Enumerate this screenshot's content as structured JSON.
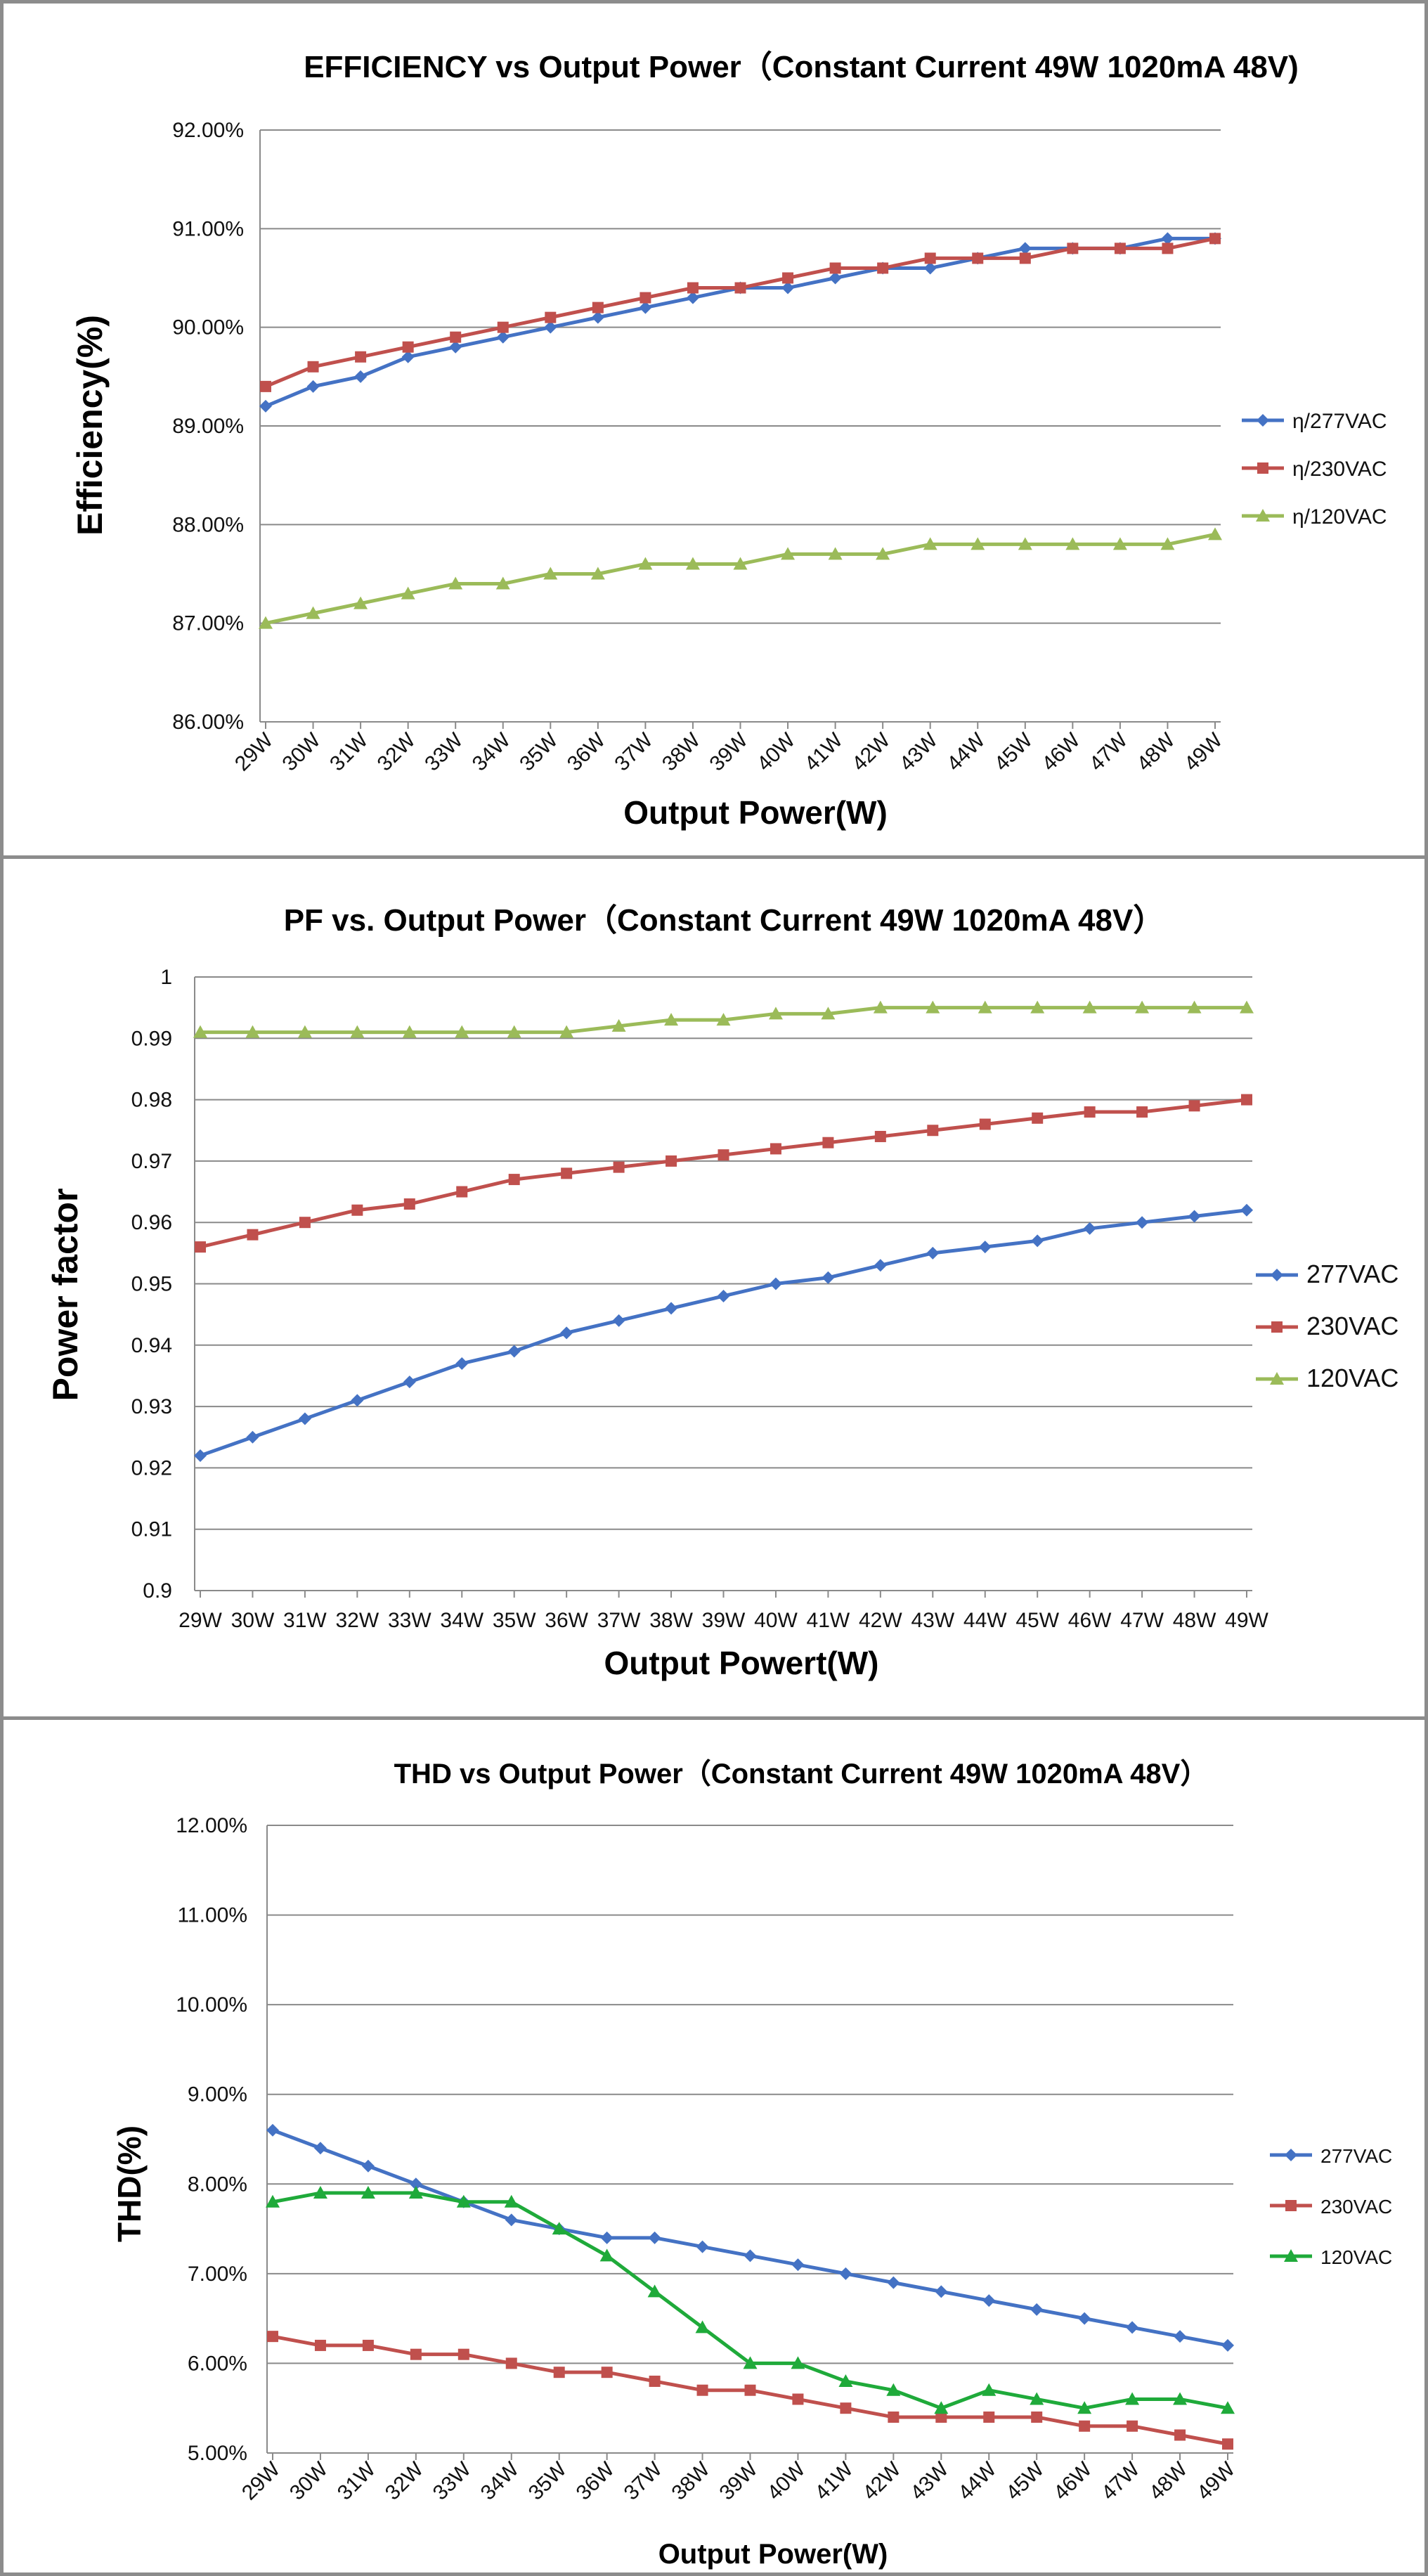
{
  "charts": [
    {
      "type": "line",
      "title": "EFFICIENCY vs Output Power（Constant Current 49W 1020mA 48V)",
      "xlabel": "Output Power(W)",
      "ylabel": "Efficiency(%)",
      "categories": [
        "29W",
        "30W",
        "31W",
        "32W",
        "33W",
        "34W",
        "35W",
        "36W",
        "37W",
        "38W",
        "39W",
        "40W",
        "41W",
        "42W",
        "43W",
        "44W",
        "45W",
        "46W",
        "47W",
        "48W",
        "49W"
      ],
      "ylim": [
        86,
        92
      ],
      "yticks": [
        "86.00%",
        "87.00%",
        "88.00%",
        "89.00%",
        "90.00%",
        "91.00%",
        "92.00%"
      ],
      "x_label_rotation": "rotated",
      "grid": "horizontal",
      "legend_position": "right",
      "series": [
        {
          "name": "η/277VAC",
          "color": "#4472C4",
          "marker": "diamond",
          "values": [
            89.2,
            89.4,
            89.5,
            89.7,
            89.8,
            89.9,
            90.0,
            90.1,
            90.2,
            90.3,
            90.4,
            90.4,
            90.5,
            90.6,
            90.6,
            90.7,
            90.8,
            90.8,
            90.8,
            90.9,
            90.9
          ]
        },
        {
          "name": "η/230VAC",
          "color": "#C0504D",
          "marker": "square",
          "values": [
            89.4,
            89.6,
            89.7,
            89.8,
            89.9,
            90.0,
            90.1,
            90.2,
            90.3,
            90.4,
            90.4,
            90.5,
            90.6,
            90.6,
            90.7,
            90.7,
            90.7,
            90.8,
            90.8,
            90.8,
            90.9
          ]
        },
        {
          "name": "η/120VAC",
          "color": "#9BBB59",
          "marker": "triangle",
          "values": [
            87.0,
            87.1,
            87.2,
            87.3,
            87.4,
            87.4,
            87.5,
            87.5,
            87.6,
            87.6,
            87.6,
            87.7,
            87.7,
            87.7,
            87.8,
            87.8,
            87.8,
            87.8,
            87.8,
            87.8,
            87.9
          ]
        }
      ]
    },
    {
      "type": "line",
      "title": "PF vs. Output Power（Constant Current 49W 1020mA 48V）",
      "xlabel": "Output Powert(W)",
      "ylabel": "Power factor",
      "categories": [
        "29W",
        "30W",
        "31W",
        "32W",
        "33W",
        "34W",
        "35W",
        "36W",
        "37W",
        "38W",
        "39W",
        "40W",
        "41W",
        "42W",
        "43W",
        "44W",
        "45W",
        "46W",
        "47W",
        "48W",
        "49W"
      ],
      "ylim": [
        0.9,
        1.0
      ],
      "yticks": [
        "0.9",
        "0.91",
        "0.92",
        "0.93",
        "0.94",
        "0.95",
        "0.96",
        "0.97",
        "0.98",
        "0.99",
        "1"
      ],
      "x_label_rotation": "horizontal",
      "grid": "horizontal",
      "legend_position": "right",
      "series": [
        {
          "name": "277VAC",
          "color": "#4472C4",
          "marker": "diamond",
          "values": [
            0.922,
            0.925,
            0.928,
            0.931,
            0.934,
            0.937,
            0.939,
            0.942,
            0.944,
            0.946,
            0.948,
            0.95,
            0.951,
            0.953,
            0.955,
            0.956,
            0.957,
            0.959,
            0.96,
            0.961,
            0.962
          ]
        },
        {
          "name": "230VAC",
          "color": "#C0504D",
          "marker": "square",
          "values": [
            0.956,
            0.958,
            0.96,
            0.962,
            0.963,
            0.965,
            0.967,
            0.968,
            0.969,
            0.97,
            0.971,
            0.972,
            0.973,
            0.974,
            0.975,
            0.976,
            0.977,
            0.978,
            0.978,
            0.979,
            0.98
          ]
        },
        {
          "name": "120VAC",
          "color": "#9BBB59",
          "marker": "triangle",
          "values": [
            0.991,
            0.991,
            0.991,
            0.991,
            0.991,
            0.991,
            0.991,
            0.991,
            0.992,
            0.993,
            0.993,
            0.994,
            0.994,
            0.995,
            0.995,
            0.995,
            0.995,
            0.995,
            0.995,
            0.995,
            0.995
          ]
        }
      ]
    },
    {
      "type": "line",
      "title": "THD vs Output Power（Constant Current 49W  1020mA 48V）",
      "xlabel": "Output Power(W)",
      "ylabel": "THD(%)",
      "categories": [
        "29W",
        "30W",
        "31W",
        "32W",
        "33W",
        "34W",
        "35W",
        "36W",
        "37W",
        "38W",
        "39W",
        "40W",
        "41W",
        "42W",
        "43W",
        "44W",
        "45W",
        "46W",
        "47W",
        "48W",
        "49W"
      ],
      "ylim": [
        5,
        12
      ],
      "yticks": [
        "5.00%",
        "6.00%",
        "7.00%",
        "8.00%",
        "9.00%",
        "10.00%",
        "11.00%",
        "12.00%"
      ],
      "x_label_rotation": "rotated",
      "grid": "horizontal",
      "legend_position": "right",
      "series": [
        {
          "name": "277VAC",
          "color": "#4472C4",
          "marker": "diamond",
          "values": [
            8.6,
            8.4,
            8.2,
            8.0,
            7.8,
            7.6,
            7.5,
            7.4,
            7.4,
            7.3,
            7.2,
            7.1,
            7.0,
            6.9,
            6.8,
            6.7,
            6.6,
            6.5,
            6.4,
            6.3,
            6.2
          ]
        },
        {
          "name": "230VAC",
          "color": "#C0504D",
          "marker": "square",
          "values": [
            6.3,
            6.2,
            6.2,
            6.1,
            6.1,
            6.0,
            5.9,
            5.9,
            5.8,
            5.7,
            5.7,
            5.6,
            5.5,
            5.4,
            5.4,
            5.4,
            5.4,
            5.3,
            5.3,
            5.2,
            5.1
          ]
        },
        {
          "name": "120VAC",
          "color": "#1FAA3A",
          "marker": "triangle",
          "values": [
            7.8,
            7.9,
            7.9,
            7.9,
            7.8,
            7.8,
            7.5,
            7.2,
            6.8,
            6.4,
            6.0,
            6.0,
            5.8,
            5.7,
            5.5,
            5.7,
            5.6,
            5.5,
            5.6,
            5.6,
            5.5
          ]
        }
      ]
    }
  ]
}
